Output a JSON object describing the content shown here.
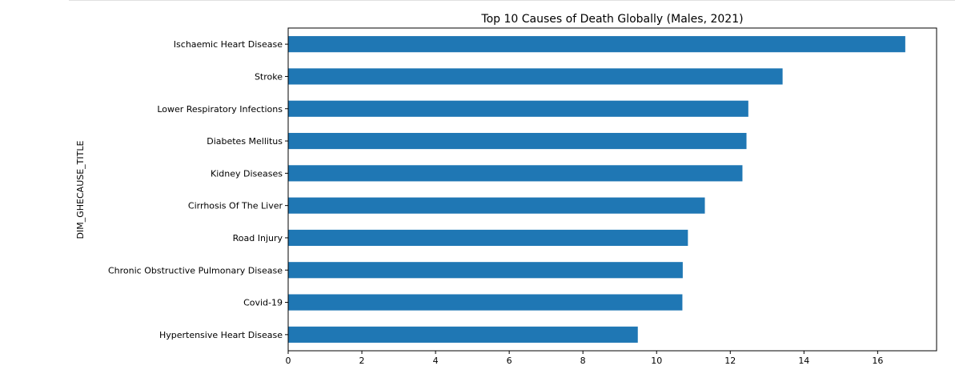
{
  "chart_data": {
    "type": "bar",
    "orientation": "horizontal",
    "title": "Top 10 Causes of Death Globally (Males, 2021)",
    "xlabel": "",
    "ylabel": "DIM_GHECAUSE_TITLE",
    "categories": [
      "Ischaemic Heart Disease",
      "Stroke",
      "Lower Respiratory Infections",
      "Diabetes Mellitus",
      "Kidney Diseases",
      "Cirrhosis Of The Liver",
      "Road Injury",
      "Chronic Obstructive Pulmonary Disease",
      "Covid-19",
      "Hypertensive Heart Disease"
    ],
    "values": [
      16.75,
      13.42,
      12.49,
      12.44,
      12.33,
      11.31,
      10.85,
      10.71,
      10.7,
      9.49
    ],
    "xlim": [
      0,
      17.6
    ],
    "xticks": [
      0,
      2,
      4,
      6,
      8,
      10,
      12,
      14,
      16
    ],
    "xtick_labels": [
      "0",
      "2",
      "4",
      "6",
      "8",
      "10",
      "12",
      "14",
      "16"
    ],
    "bar_color": "#1f77b4",
    "grid": false,
    "legend": "none"
  }
}
